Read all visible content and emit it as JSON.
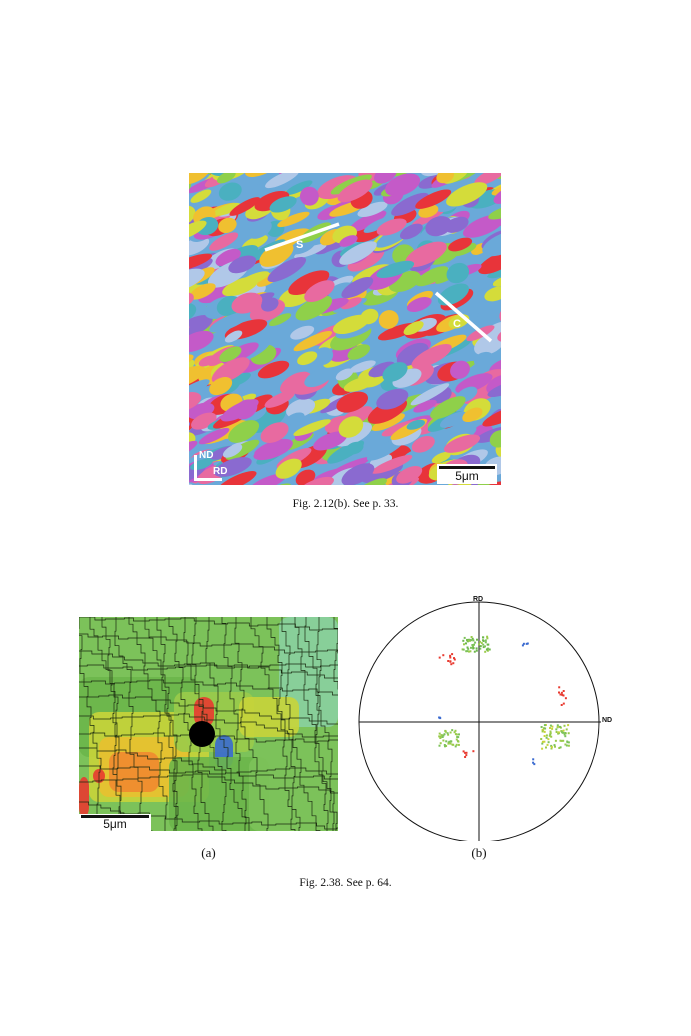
{
  "figure1": {
    "caption": "Fig. 2.12(b). See p. 33.",
    "scale_label": "5μm",
    "axis_nd": "ND",
    "axis_rd": "RD",
    "line_s": "S",
    "line_c": "C",
    "palette": [
      "#e8343a",
      "#d4dc3a",
      "#8fd04a",
      "#6aa9d9",
      "#8a6ad0",
      "#c45ac8",
      "#f0c030",
      "#e86aa0",
      "#4ab0c0",
      "#b0c8e8"
    ]
  },
  "figure2": {
    "caption": "Fig. 2.38. See p. 64.",
    "panel_a_label": "(a)",
    "panel_b_label": "(b)",
    "scale_label": "5μm",
    "pole_top_label": "RD",
    "pole_right_label": "ND",
    "palette": [
      "#7cc25a",
      "#6bb64a",
      "#9acb4a",
      "#c8d43a",
      "#e8c030",
      "#f08a30",
      "#e83a30",
      "#3a6ad0",
      "#8ad0a0"
    ]
  }
}
